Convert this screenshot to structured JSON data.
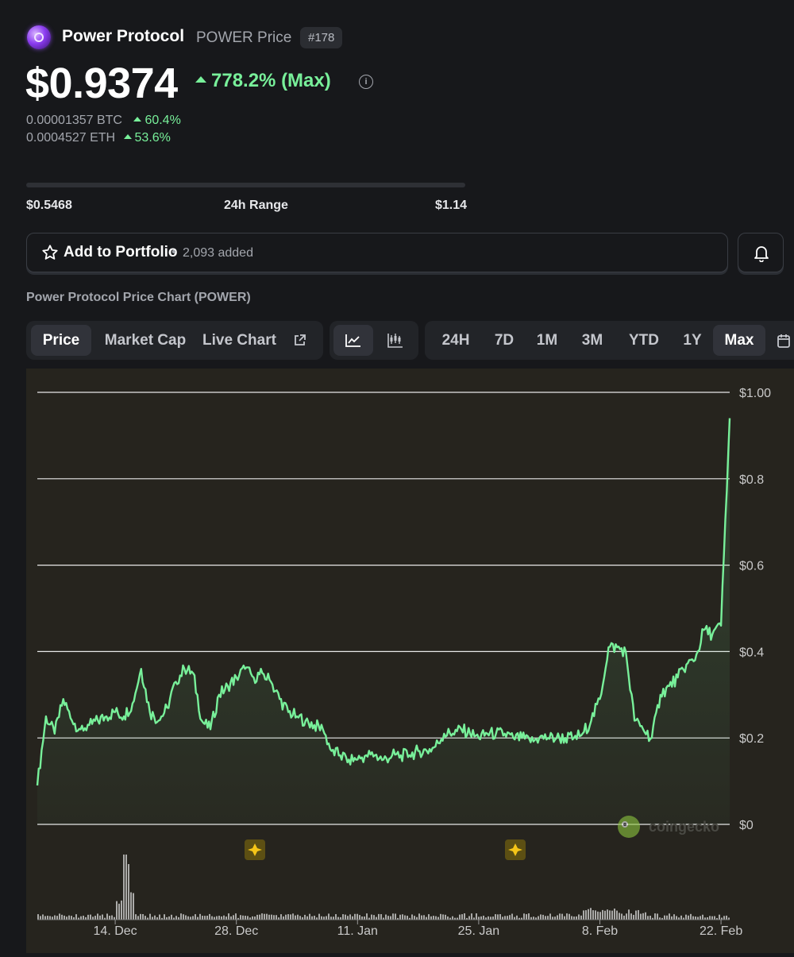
{
  "coin": {
    "name": "Power Protocol",
    "subtitle": "POWER Price",
    "rank": "#178",
    "price": "$0.9374",
    "change": "778.2% (Max)",
    "btc_value": "0.00001357 BTC",
    "btc_change": "60.4%",
    "eth_value": "0.0004527 ETH",
    "eth_change": "53.6%",
    "change_color": "#78f09a"
  },
  "range": {
    "low": "$0.5468",
    "label": "24h Range",
    "high": "$1.14"
  },
  "portfolio": {
    "label": "Add to Portfolio",
    "separator": "•",
    "count": "2,093 added"
  },
  "chart_heading": "Power Protocol Price Chart (POWER)",
  "tabs": {
    "type": [
      "Price",
      "Market Cap",
      "Live Chart"
    ],
    "type_active": "Price",
    "ranges": [
      "24H",
      "7D",
      "1M",
      "3M",
      "YTD",
      "1Y",
      "Max"
    ],
    "range_active": "Max"
  },
  "icons": {
    "logo": "power-protocol-logo",
    "star": "star-icon",
    "bell": "bell-icon",
    "info": "info-icon",
    "external": "external-link-icon",
    "line_chart": "line-chart-icon",
    "candle_chart": "candlestick-icon",
    "calendar": "calendar-icon",
    "watermark": "coingecko-logo",
    "event": "sparkle-event-icon"
  },
  "chart_data": {
    "type": "line",
    "y_ticks": [
      "$1.00",
      "$0.8",
      "$0.6",
      "$0.4",
      "$0.2",
      "$0"
    ],
    "ylim": [
      0,
      1.0
    ],
    "grid": true,
    "line_color": "#78f09a",
    "x_ticks": [
      "14. Dec",
      "28. Dec",
      "11. Jan",
      "25. Jan",
      "8. Feb",
      "22. Feb"
    ],
    "watermark": "coingecko",
    "x": [
      "2024-12-05",
      "2024-12-06",
      "2024-12-07",
      "2024-12-08",
      "2024-12-09",
      "2024-12-10",
      "2024-12-11",
      "2024-12-12",
      "2024-12-13",
      "2024-12-14",
      "2024-12-15",
      "2024-12-16",
      "2024-12-17",
      "2024-12-18",
      "2024-12-19",
      "2024-12-20",
      "2024-12-21",
      "2024-12-22",
      "2024-12-23",
      "2024-12-24",
      "2024-12-25",
      "2024-12-26",
      "2024-12-27",
      "2024-12-28",
      "2024-12-29",
      "2024-12-30",
      "2024-12-31",
      "2025-01-01",
      "2025-01-02",
      "2025-01-03",
      "2025-01-04",
      "2025-01-05",
      "2025-01-06",
      "2025-01-07",
      "2025-01-08",
      "2025-01-09",
      "2025-01-10",
      "2025-01-11",
      "2025-01-12",
      "2025-01-13",
      "2025-01-14",
      "2025-01-15",
      "2025-01-16",
      "2025-01-17",
      "2025-01-18",
      "2025-01-19",
      "2025-01-20",
      "2025-01-21",
      "2025-01-22",
      "2025-01-23",
      "2025-01-24",
      "2025-01-25",
      "2025-01-26",
      "2025-01-27",
      "2025-01-28",
      "2025-01-29",
      "2025-01-30",
      "2025-01-31",
      "2025-02-01",
      "2025-02-02",
      "2025-02-03",
      "2025-02-04",
      "2025-02-05",
      "2025-02-06",
      "2025-02-07",
      "2025-02-08",
      "2025-02-09",
      "2025-02-10",
      "2025-02-11",
      "2025-02-12",
      "2025-02-13",
      "2025-02-14",
      "2025-02-15",
      "2025-02-16",
      "2025-02-17",
      "2025-02-18",
      "2025-02-19",
      "2025-02-20",
      "2025-02-21",
      "2025-02-22",
      "2025-02-23"
    ],
    "values": [
      0.09,
      0.25,
      0.21,
      0.29,
      0.24,
      0.22,
      0.23,
      0.24,
      0.25,
      0.26,
      0.25,
      0.28,
      0.36,
      0.26,
      0.24,
      0.27,
      0.33,
      0.36,
      0.35,
      0.24,
      0.22,
      0.3,
      0.32,
      0.34,
      0.36,
      0.34,
      0.35,
      0.33,
      0.29,
      0.26,
      0.25,
      0.24,
      0.23,
      0.22,
      0.17,
      0.16,
      0.15,
      0.15,
      0.16,
      0.16,
      0.15,
      0.16,
      0.16,
      0.16,
      0.17,
      0.17,
      0.18,
      0.21,
      0.21,
      0.22,
      0.21,
      0.2,
      0.21,
      0.21,
      0.21,
      0.2,
      0.2,
      0.19,
      0.2,
      0.2,
      0.2,
      0.2,
      0.2,
      0.21,
      0.24,
      0.29,
      0.41,
      0.41,
      0.4,
      0.24,
      0.22,
      0.2,
      0.3,
      0.32,
      0.34,
      0.37,
      0.38,
      0.45,
      0.44,
      0.46,
      0.94
    ],
    "volume_spike_date": "2024-12-15"
  }
}
